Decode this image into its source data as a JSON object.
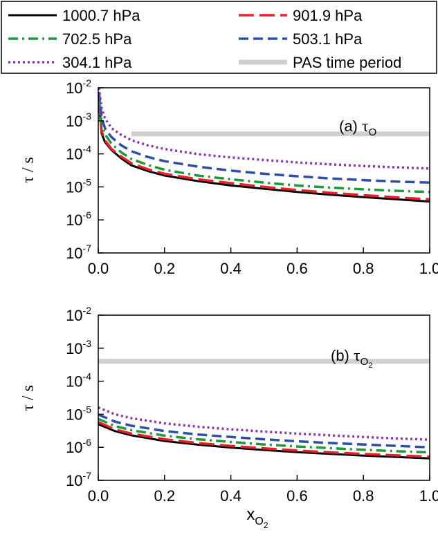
{
  "legend": {
    "entries": [
      {
        "label": "1000.7 hPa",
        "color": "#000000",
        "dash": "",
        "width": 3
      },
      {
        "label": "901.9 hPa",
        "color": "#e8202a",
        "dash": "22,8",
        "width": 3.5
      },
      {
        "label": "702.5 hPa",
        "color": "#1f9a3a",
        "dash": "14,6,3,6",
        "width": 3.5
      },
      {
        "label": "503.1 hPa",
        "color": "#2e4ea8",
        "dash": "14,7",
        "width": 3.5
      },
      {
        "label": "304.1 hPa",
        "color": "#8a3aa8",
        "dash": "3,4",
        "width": 3.5
      },
      {
        "label": "PAS time period",
        "color": "#cfcfcf",
        "dash": "",
        "width": 7
      }
    ]
  },
  "y_axis": {
    "title": "τ / s",
    "ticks": [
      {
        "base": "10",
        "exp": "-7",
        "value": 1e-07
      },
      {
        "base": "10",
        "exp": "-6",
        "value": 1e-06
      },
      {
        "base": "10",
        "exp": "-5",
        "value": 1e-05
      },
      {
        "base": "10",
        "exp": "-4",
        "value": 0.0001
      },
      {
        "base": "10",
        "exp": "-3",
        "value": 0.001
      },
      {
        "base": "10",
        "exp": "-2",
        "value": 0.01
      }
    ]
  },
  "x_axis": {
    "title_main": "x",
    "title_sub": "O",
    "title_subsub": "2",
    "ticks": [
      "0.0",
      "0.2",
      "0.4",
      "0.6",
      "0.8",
      "1.0"
    ]
  },
  "panels": [
    {
      "label_prefix": "(a) ",
      "label_tau": "τ",
      "label_sub": "O",
      "label_subsub": ""
    },
    {
      "label_prefix": "(b) ",
      "label_tau": "τ",
      "label_sub": "O",
      "label_subsub": "2"
    }
  ],
  "chart_data": [
    {
      "type": "line",
      "title": "(a) τO",
      "xlabel": "xO2",
      "ylabel": "τ / s",
      "yscale": "log",
      "xlim": [
        0.0,
        1.0
      ],
      "ylim": [
        1e-07,
        0.01
      ],
      "x": [
        0.002,
        0.01,
        0.02,
        0.04,
        0.07,
        0.1,
        0.15,
        0.2,
        0.3,
        0.4,
        0.5,
        0.6,
        0.7,
        0.8,
        0.9,
        1.0
      ],
      "series": [
        {
          "name": "1000.7 hPa",
          "values": [
            0.0035,
            0.00042,
            0.00023,
            0.00013,
            7.2e-05,
            4.5e-05,
            3e-05,
            2.2e-05,
            1.5e-05,
            1.1e-05,
            8.8e-06,
            7e-06,
            5.8e-06,
            4.9e-06,
            4.2e-06,
            3.6e-06
          ]
        },
        {
          "name": "901.9 hPa",
          "values": [
            0.0042,
            0.0005,
            0.00026,
            0.00014,
            8.2e-05,
            5.2e-05,
            3.4e-05,
            2.5e-05,
            1.7e-05,
            1.3e-05,
            1e-05,
            8e-06,
            6.6e-06,
            5.6e-06,
            4.8e-06,
            4.2e-06
          ]
        },
        {
          "name": "702.5 hPa",
          "values": [
            0.0055,
            0.00075,
            0.0004,
            0.0002,
            0.00011,
            7e-05,
            4.6e-05,
            3.3e-05,
            2.2e-05,
            1.7e-05,
            1.35e-05,
            1.1e-05,
            9.5e-06,
            8.4e-06,
            7.6e-06,
            7e-06
          ]
        },
        {
          "name": "503.1 hPa",
          "values": [
            0.0075,
            0.0013,
            0.0006,
            0.00032,
            0.00018,
            0.00012,
            8e-05,
            6e-05,
            4.1e-05,
            3.1e-05,
            2.5e-05,
            2.1e-05,
            1.8e-05,
            1.6e-05,
            1.45e-05,
            1.35e-05
          ]
        },
        {
          "name": "304.1 hPa",
          "values": [
            0.01,
            0.0025,
            0.0012,
            0.0006,
            0.00037,
            0.00026,
            0.00018,
            0.00014,
            9.8e-05,
            7.8e-05,
            6.5e-05,
            5.5e-05,
            4.8e-05,
            4.3e-05,
            3.9e-05,
            3.6e-05
          ]
        },
        {
          "name": "PAS time period",
          "values": [
            0.0004,
            0.0004,
            0.0004,
            0.0004,
            0.0004,
            0.0004,
            0.0004,
            0.0004,
            0.0004,
            0.0004,
            0.0004,
            0.0004,
            0.0004,
            0.0004,
            0.0004,
            0.0004
          ],
          "x_start": 0.1
        }
      ]
    },
    {
      "type": "line",
      "title": "(b) τO2",
      "xlabel": "xO2",
      "ylabel": "τ / s",
      "yscale": "log",
      "xlim": [
        0.0,
        1.0
      ],
      "ylim": [
        1e-07,
        0.01
      ],
      "x": [
        0.0,
        0.05,
        0.1,
        0.2,
        0.3,
        0.4,
        0.5,
        0.6,
        0.7,
        0.8,
        0.9,
        1.0
      ],
      "series": [
        {
          "name": "1000.7 hPa",
          "values": [
            5e-06,
            3.1e-06,
            2.3e-06,
            1.55e-06,
            1.2e-06,
            9.8e-07,
            8.3e-07,
            7.1e-07,
            6.3e-07,
            5.6e-07,
            5.1e-07,
            4.6e-07
          ]
        },
        {
          "name": "901.9 hPa",
          "values": [
            5.8e-06,
            3.5e-06,
            2.6e-06,
            1.75e-06,
            1.35e-06,
            1.1e-06,
            9.3e-07,
            8e-07,
            7e-07,
            6.3e-07,
            5.7e-07,
            5.2e-07
          ]
        },
        {
          "name": "702.5 hPa",
          "values": [
            7.2e-06,
            4.4e-06,
            3.3e-06,
            2.25e-06,
            1.75e-06,
            1.45e-06,
            1.22e-06,
            1.06e-06,
            9.4e-07,
            8.4e-07,
            7.6e-07,
            7e-07
          ]
        },
        {
          "name": "503.1 hPa",
          "values": [
            9.8e-06,
            6e-06,
            4.5e-06,
            3.1e-06,
            2.45e-06,
            2.05e-06,
            1.75e-06,
            1.52e-06,
            1.35e-06,
            1.22e-06,
            1.1e-06,
            1e-06
          ]
        },
        {
          "name": "304.1 hPa",
          "values": [
            1.6e-05,
            1e-05,
            7.6e-06,
            5.3e-06,
            4.2e-06,
            3.5e-06,
            3e-06,
            2.6e-06,
            2.3e-06,
            2.05e-06,
            1.85e-06,
            1.7e-06
          ]
        },
        {
          "name": "PAS time period",
          "values": [
            0.0004,
            0.0004,
            0.0004,
            0.0004,
            0.0004,
            0.0004,
            0.0004,
            0.0004,
            0.0004,
            0.0004,
            0.0004,
            0.0004
          ]
        }
      ]
    }
  ]
}
